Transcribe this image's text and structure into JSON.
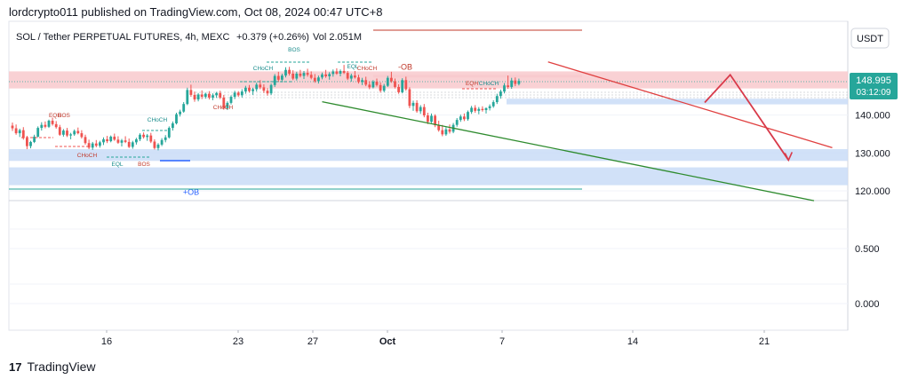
{
  "header": {
    "published_line": "lordcrypto011 published on TradingView.com, Oct 08, 2024 00:47 UTC+8"
  },
  "footer": {
    "logo_text": "TradingView",
    "logo_mark": "17"
  },
  "chart_data": {
    "type": "candlestick",
    "symbol_line": "SOL / Tether PERPETUAL FUTURES, 4h, MEXC",
    "change_text": "+0.379 (+0.26%)",
    "volume_text": "Vol 2.051M",
    "currency_button": "USDT",
    "last_price": "148.995",
    "countdown": "03:12:09",
    "price_scale_labels": [
      "140.000",
      "130.000",
      "120.000"
    ],
    "lower_scale_labels": [
      "0.500",
      "0.000"
    ],
    "x_tick_labels": [
      "16",
      "23",
      "27",
      "Oct",
      "7",
      "14",
      "21"
    ],
    "zones": [
      {
        "label": "-OB",
        "low": 147.0,
        "high": 151.5,
        "color": "#f8c9cc"
      },
      {
        "label": "",
        "low": 149.9,
        "high": 150.6,
        "color": "#f8c9cc"
      },
      {
        "label": "",
        "low": 142.8,
        "high": 144.3,
        "color": "#c9dcf7"
      },
      {
        "label": "",
        "low": 127.9,
        "high": 131.0,
        "color": "#c9dcf7"
      },
      {
        "label": "+OB",
        "low": 121.5,
        "high": 126.2,
        "color": "#c9dcf7"
      }
    ],
    "trendlines": [
      {
        "name": "resistance",
        "color": "#e04040",
        "from": [
          147,
          154.0
        ],
        "to": [
          225,
          131.4
        ]
      },
      {
        "name": "support",
        "color": "#2e8b2e",
        "from": [
          85,
          143.5
        ],
        "to": [
          220,
          117.4
        ]
      }
    ],
    "projection_path": {
      "color": "#d83a4a",
      "points": [
        [
          190,
          143.3
        ],
        [
          197,
          150.6
        ],
        [
          213,
          128.1
        ]
      ]
    },
    "structure_labels": [
      {
        "text": "EQH",
        "color": "#c0392b"
      },
      {
        "text": "BOS",
        "color": "#c0392b"
      },
      {
        "text": "CHoCH",
        "color": "#c0392b"
      },
      {
        "text": "EQL",
        "color": "#1a8c8c"
      },
      {
        "text": "BOS",
        "color": "#c0392b"
      },
      {
        "text": "CHoCH",
        "color": "#1a8c8c"
      },
      {
        "text": "CHoCH",
        "color": "#c0392b"
      },
      {
        "text": "CHoCH",
        "color": "#1a8c8c"
      },
      {
        "text": "BOS",
        "color": "#1a8c8c"
      },
      {
        "text": "EQL",
        "color": "#1a8c8c"
      },
      {
        "text": "CHoCH",
        "color": "#c0392b"
      },
      {
        "text": "EQH",
        "color": "#c0392b"
      },
      {
        "text": "CHoCH",
        "color": "#1a8c8c"
      }
    ],
    "up_color": "#26a69a",
    "down_color": "#ef5350",
    "candles": [
      [
        0,
        137.2,
        138.0,
        135.8,
        136.5
      ],
      [
        1,
        136.5,
        137.5,
        134.8,
        135.2
      ],
      [
        2,
        135.2,
        136.4,
        134.2,
        136.0
      ],
      [
        3,
        136.0,
        136.8,
        133.5,
        133.9
      ],
      [
        4,
        133.9,
        134.5,
        131.0,
        131.8
      ],
      [
        5,
        131.8,
        133.2,
        131.2,
        132.9
      ],
      [
        6,
        132.9,
        134.8,
        132.6,
        134.3
      ],
      [
        7,
        134.3,
        137.0,
        134.1,
        136.6
      ],
      [
        8,
        136.6,
        138.1,
        135.9,
        137.4
      ],
      [
        9,
        137.4,
        138.3,
        136.5,
        136.9
      ],
      [
        10,
        136.9,
        138.8,
        136.6,
        138.5
      ],
      [
        11,
        138.5,
        139.3,
        137.2,
        137.6
      ],
      [
        12,
        137.6,
        138.4,
        136.4,
        136.8
      ],
      [
        13,
        136.8,
        137.4,
        134.5,
        134.8
      ],
      [
        14,
        134.8,
        136.3,
        134.3,
        135.9
      ],
      [
        15,
        135.9,
        136.6,
        134.2,
        134.6
      ],
      [
        16,
        134.6,
        135.3,
        133.6,
        134.9
      ],
      [
        17,
        134.9,
        136.2,
        134.5,
        135.8
      ],
      [
        18,
        135.8,
        136.7,
        134.9,
        135.2
      ],
      [
        19,
        135.2,
        136.0,
        133.8,
        134.2
      ],
      [
        20,
        134.2,
        134.8,
        132.2,
        132.6
      ],
      [
        21,
        132.6,
        133.5,
        131.0,
        131.4
      ],
      [
        22,
        131.4,
        132.9,
        130.8,
        132.5
      ],
      [
        23,
        132.5,
        133.4,
        131.5,
        131.9
      ],
      [
        24,
        131.9,
        133.2,
        131.4,
        132.8
      ],
      [
        25,
        132.8,
        134.1,
        132.1,
        133.6
      ],
      [
        26,
        133.6,
        134.5,
        132.6,
        133.1
      ],
      [
        27,
        133.1,
        134.6,
        132.8,
        134.3
      ],
      [
        28,
        134.3,
        135.1,
        133.2,
        133.5
      ],
      [
        29,
        133.5,
        134.4,
        132.4,
        132.7
      ],
      [
        30,
        132.7,
        133.7,
        131.7,
        133.3
      ],
      [
        31,
        133.3,
        134.4,
        132.6,
        132.9
      ],
      [
        32,
        132.9,
        133.8,
        131.3,
        131.6
      ],
      [
        33,
        131.6,
        133.2,
        131.1,
        132.8
      ],
      [
        34,
        132.8,
        134.0,
        132.2,
        133.6
      ],
      [
        35,
        133.6,
        135.2,
        133.1,
        134.8
      ],
      [
        36,
        134.8,
        135.4,
        133.8,
        134.2
      ],
      [
        37,
        134.2,
        135.0,
        133.2,
        134.6
      ],
      [
        38,
        134.6,
        135.3,
        132.6,
        133.0
      ],
      [
        39,
        133.0,
        133.6,
        130.9,
        131.3
      ],
      [
        40,
        131.3,
        132.6,
        130.7,
        132.2
      ],
      [
        41,
        132.2,
        133.9,
        131.8,
        133.4
      ],
      [
        42,
        133.4,
        134.7,
        132.8,
        134.1
      ],
      [
        43,
        134.1,
        137.0,
        133.8,
        136.6
      ],
      [
        44,
        136.6,
        138.3,
        135.9,
        137.8
      ],
      [
        45,
        137.8,
        140.6,
        137.5,
        140.2
      ],
      [
        46,
        140.2,
        141.4,
        139.6,
        140.9
      ],
      [
        47,
        140.9,
        143.4,
        140.6,
        142.9
      ],
      [
        48,
        142.9,
        147.2,
        142.6,
        146.6
      ],
      [
        49,
        146.6,
        148.0,
        144.8,
        145.3
      ],
      [
        50,
        145.3,
        146.2,
        143.5,
        144.1
      ],
      [
        51,
        144.1,
        145.8,
        143.6,
        145.4
      ],
      [
        52,
        145.4,
        146.5,
        144.2,
        144.8
      ],
      [
        53,
        144.8,
        145.9,
        144.3,
        145.6
      ],
      [
        54,
        145.6,
        146.3,
        144.1,
        144.6
      ],
      [
        55,
        144.6,
        145.7,
        143.9,
        145.2
      ],
      [
        56,
        145.2,
        146.1,
        144.5,
        145.8
      ],
      [
        57,
        145.8,
        146.4,
        144.2,
        144.6
      ],
      [
        58,
        144.6,
        145.3,
        141.4,
        141.8
      ],
      [
        59,
        141.8,
        143.6,
        141.3,
        143.2
      ],
      [
        60,
        143.2,
        145.2,
        142.8,
        144.8
      ],
      [
        61,
        144.8,
        146.4,
        144.2,
        145.9
      ],
      [
        62,
        145.9,
        146.3,
        144.8,
        145.2
      ],
      [
        63,
        145.2,
        146.8,
        144.6,
        146.2
      ],
      [
        64,
        146.2,
        147.7,
        145.6,
        147.2
      ],
      [
        65,
        147.2,
        147.9,
        145.9,
        146.3
      ],
      [
        66,
        146.3,
        147.2,
        145.3,
        146.8
      ],
      [
        67,
        146.8,
        148.5,
        146.2,
        148.0
      ],
      [
        68,
        148.0,
        149.2,
        146.8,
        147.3
      ],
      [
        69,
        147.3,
        148.1,
        145.8,
        146.4
      ],
      [
        70,
        146.4,
        147.1,
        145.1,
        145.7
      ],
      [
        71,
        145.7,
        148.3,
        145.3,
        147.9
      ],
      [
        72,
        147.9,
        150.8,
        147.4,
        150.3
      ],
      [
        73,
        150.3,
        151.4,
        148.8,
        149.3
      ],
      [
        74,
        149.3,
        150.9,
        148.6,
        150.4
      ],
      [
        75,
        150.4,
        152.6,
        149.9,
        151.9
      ],
      [
        76,
        151.9,
        152.7,
        150.4,
        150.9
      ],
      [
        77,
        150.9,
        151.8,
        149.2,
        149.6
      ],
      [
        78,
        149.6,
        151.4,
        149.1,
        150.9
      ],
      [
        79,
        150.9,
        151.9,
        149.9,
        150.3
      ],
      [
        80,
        150.3,
        151.6,
        149.5,
        151.1
      ],
      [
        81,
        151.1,
        152.2,
        150.1,
        150.6
      ],
      [
        82,
        150.6,
        151.5,
        149.4,
        149.8
      ],
      [
        83,
        149.8,
        150.8,
        148.5,
        148.9
      ],
      [
        84,
        148.9,
        150.4,
        148.3,
        149.9
      ],
      [
        85,
        149.9,
        151.2,
        149.4,
        150.7
      ],
      [
        86,
        150.7,
        151.9,
        149.8,
        150.2
      ],
      [
        87,
        150.2,
        151.3,
        149.3,
        150.8
      ],
      [
        88,
        150.8,
        152.0,
        150.1,
        151.5
      ],
      [
        89,
        151.5,
        152.3,
        150.6,
        150.9
      ],
      [
        90,
        150.9,
        152.0,
        150.2,
        151.6
      ],
      [
        91,
        151.6,
        153.2,
        150.8,
        151.1
      ],
      [
        92,
        151.1,
        151.6,
        149.2,
        149.6
      ],
      [
        93,
        149.6,
        150.9,
        148.8,
        150.4
      ],
      [
        94,
        150.4,
        151.6,
        149.6,
        149.9
      ],
      [
        95,
        149.9,
        150.6,
        148.3,
        148.7
      ],
      [
        96,
        148.7,
        149.8,
        147.9,
        149.2
      ],
      [
        97,
        149.2,
        150.1,
        147.6,
        148.0
      ],
      [
        98,
        148.0,
        148.9,
        146.8,
        147.3
      ],
      [
        99,
        147.3,
        149.2,
        147.0,
        148.8
      ],
      [
        100,
        148.8,
        149.6,
        147.5,
        147.9
      ],
      [
        101,
        147.9,
        148.6,
        145.9,
        146.4
      ],
      [
        102,
        146.4,
        148.2,
        146.0,
        147.7
      ],
      [
        103,
        147.7,
        150.3,
        147.4,
        149.8
      ],
      [
        104,
        149.8,
        151.4,
        148.5,
        148.9
      ],
      [
        105,
        148.9,
        149.6,
        147.0,
        147.4
      ],
      [
        106,
        147.4,
        148.1,
        145.6,
        146.0
      ],
      [
        107,
        146.0,
        149.7,
        145.7,
        149.2
      ],
      [
        108,
        149.2,
        150.1,
        146.4,
        146.8
      ],
      [
        109,
        146.8,
        147.3,
        141.8,
        142.4
      ],
      [
        110,
        142.4,
        143.8,
        141.1,
        143.2
      ],
      [
        111,
        143.2,
        143.9,
        140.6,
        141.0
      ],
      [
        112,
        141.0,
        142.6,
        140.3,
        142.1
      ],
      [
        113,
        142.1,
        142.9,
        139.4,
        139.9
      ],
      [
        114,
        139.9,
        140.6,
        137.6,
        138.2
      ],
      [
        115,
        138.2,
        140.4,
        137.9,
        139.8
      ],
      [
        116,
        139.8,
        140.2,
        136.8,
        137.3
      ],
      [
        117,
        137.3,
        138.5,
        135.6,
        136.0
      ],
      [
        118,
        136.0,
        137.4,
        134.4,
        134.9
      ],
      [
        119,
        134.9,
        136.8,
        134.5,
        136.2
      ],
      [
        120,
        136.2,
        137.5,
        135.1,
        135.6
      ],
      [
        121,
        135.6,
        137.9,
        135.2,
        137.4
      ],
      [
        122,
        137.4,
        139.2,
        136.9,
        138.7
      ],
      [
        123,
        138.7,
        140.1,
        138.2,
        139.6
      ],
      [
        124,
        139.6,
        140.4,
        138.4,
        138.9
      ],
      [
        125,
        138.9,
        141.2,
        138.5,
        140.8
      ],
      [
        126,
        140.8,
        142.4,
        140.3,
        141.9
      ],
      [
        127,
        141.9,
        142.6,
        140.6,
        141.1
      ],
      [
        128,
        141.1,
        142.1,
        140.2,
        141.6
      ],
      [
        129,
        141.6,
        142.3,
        140.9,
        141.3
      ],
      [
        130,
        141.3,
        142.0,
        140.4,
        141.8
      ],
      [
        131,
        141.8,
        142.8,
        141.2,
        142.3
      ],
      [
        132,
        142.3,
        143.9,
        141.9,
        143.4
      ],
      [
        133,
        143.4,
        145.6,
        142.9,
        145.0
      ],
      [
        134,
        145.0,
        146.7,
        144.3,
        146.2
      ],
      [
        135,
        146.2,
        148.4,
        145.7,
        147.8
      ],
      [
        136,
        147.8,
        150.4,
        146.9,
        147.4
      ],
      [
        137,
        147.4,
        149.8,
        146.9,
        149.1
      ],
      [
        138,
        149.1,
        149.9,
        147.6,
        148.2
      ],
      [
        139,
        148.2,
        149.6,
        147.8,
        149.0
      ]
    ]
  }
}
